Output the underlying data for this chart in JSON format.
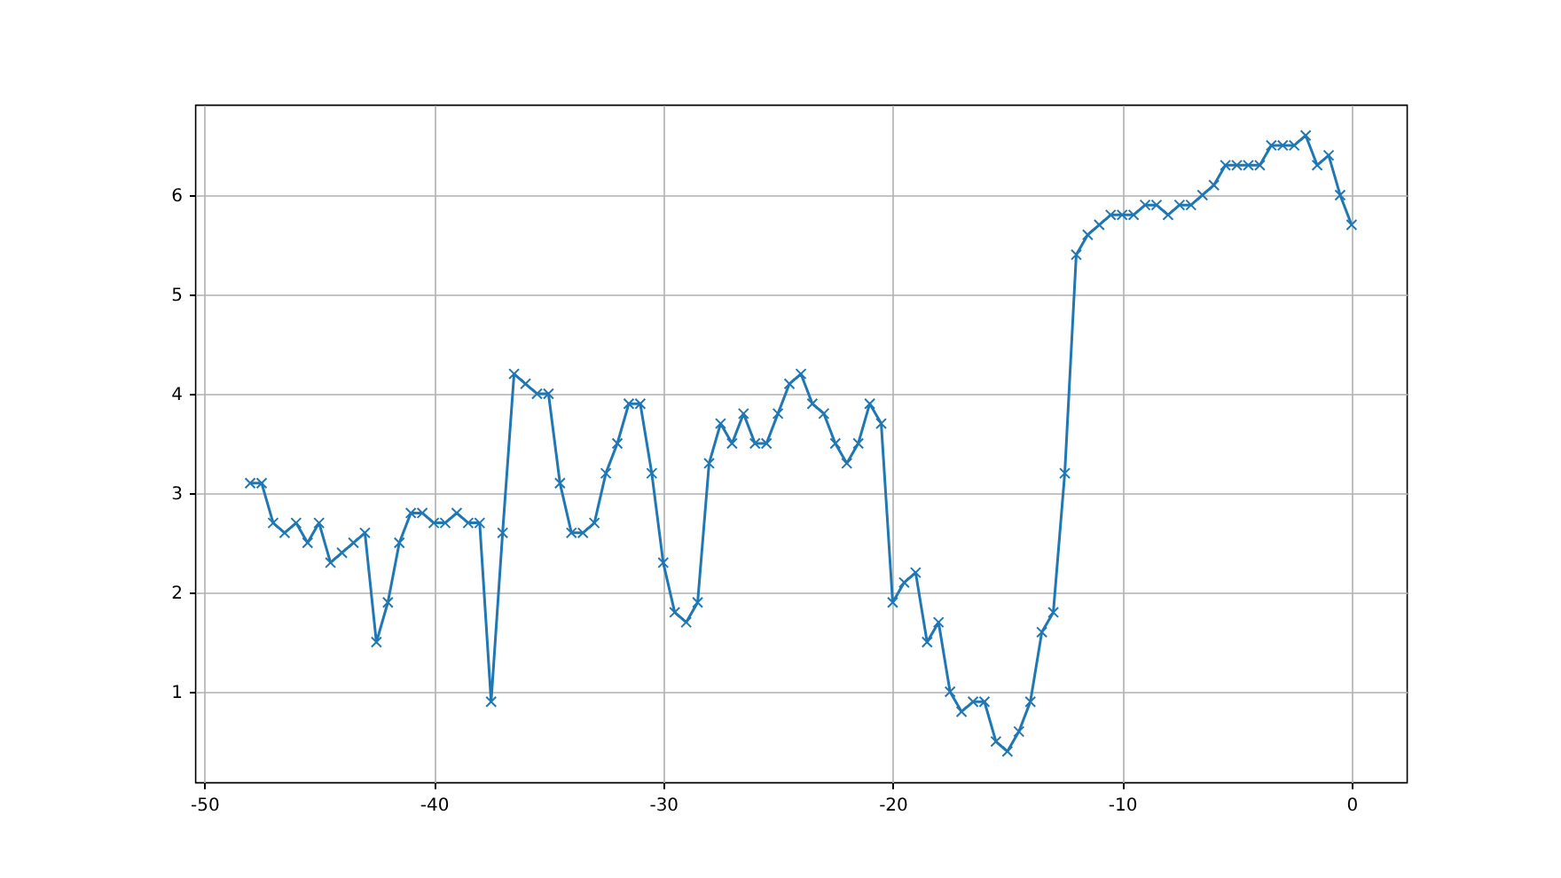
{
  "chart_data": {
    "type": "line",
    "x": [
      -48,
      -47.5,
      -47,
      -46.5,
      -46,
      -45.5,
      -45,
      -44.5,
      -44,
      -43.5,
      -43,
      -42.5,
      -42,
      -41.5,
      -41,
      -40.5,
      -40,
      -39.5,
      -39,
      -38.5,
      -38,
      -37.5,
      -37,
      -36.5,
      -36,
      -35.5,
      -35,
      -34.5,
      -34,
      -33.5,
      -33,
      -32.5,
      -32,
      -31.5,
      -31,
      -30.5,
      -30,
      -29.5,
      -29,
      -28.5,
      -28,
      -27.5,
      -27,
      -26.5,
      -26,
      -25.5,
      -25,
      -24.5,
      -24,
      -23.5,
      -23,
      -22.5,
      -22,
      -21.5,
      -21,
      -20.5,
      -20,
      -19.5,
      -19,
      -18.5,
      -18,
      -17.5,
      -17,
      -16.5,
      -16,
      -15.5,
      -15,
      -14.5,
      -14,
      -13.5,
      -13,
      -12.5,
      -12,
      -11.5,
      -11,
      -10.5,
      -10,
      -9.5,
      -9,
      -8.5,
      -8,
      -7.5,
      -7,
      -6.5,
      -6,
      -5.5,
      -5,
      -4.5,
      -4,
      -3.5,
      -3,
      -2.5,
      -2,
      -1.5,
      -1,
      -0.5,
      0
    ],
    "series": [
      {
        "color": "#1f77b4",
        "values": [
          3.1,
          3.1,
          2.7,
          2.6,
          2.7,
          2.5,
          2.7,
          2.3,
          2.4,
          2.5,
          2.6,
          1.5,
          1.9,
          2.5,
          2.8,
          2.8,
          2.7,
          2.7,
          2.8,
          2.7,
          2.7,
          0.9,
          2.6,
          4.2,
          4.1,
          4.0,
          4.0,
          3.1,
          2.6,
          2.6,
          2.7,
          3.2,
          3.5,
          3.9,
          3.9,
          3.2,
          2.3,
          1.8,
          1.7,
          1.9,
          3.3,
          3.7,
          3.5,
          3.8,
          3.5,
          3.5,
          3.8,
          4.1,
          4.2,
          3.9,
          3.8,
          3.5,
          3.3,
          3.5,
          3.9,
          3.7,
          1.9,
          2.1,
          2.2,
          1.5,
          1.7,
          1.0,
          0.8,
          0.9,
          0.9,
          0.5,
          0.4,
          0.6,
          0.9,
          1.6,
          1.8,
          3.2,
          5.4,
          5.6,
          5.7,
          5.8,
          5.8,
          5.8,
          5.9,
          5.9,
          5.8,
          5.9,
          5.9,
          6.0,
          6.1,
          6.3,
          6.3,
          6.3,
          6.3,
          6.5,
          6.5,
          6.5,
          6.6,
          6.3,
          6.4,
          6.0,
          5.7
        ]
      }
    ],
    "xlim": [
      -50.4,
      2.4
    ],
    "xticks": [
      -50,
      -40,
      -30,
      -20,
      -10,
      0
    ],
    "ylim": [
      0.09,
      6.91
    ],
    "yticks": [
      1,
      2,
      3,
      4,
      5,
      6
    ],
    "grid": true,
    "marker": "cross",
    "line_style": "solid"
  }
}
